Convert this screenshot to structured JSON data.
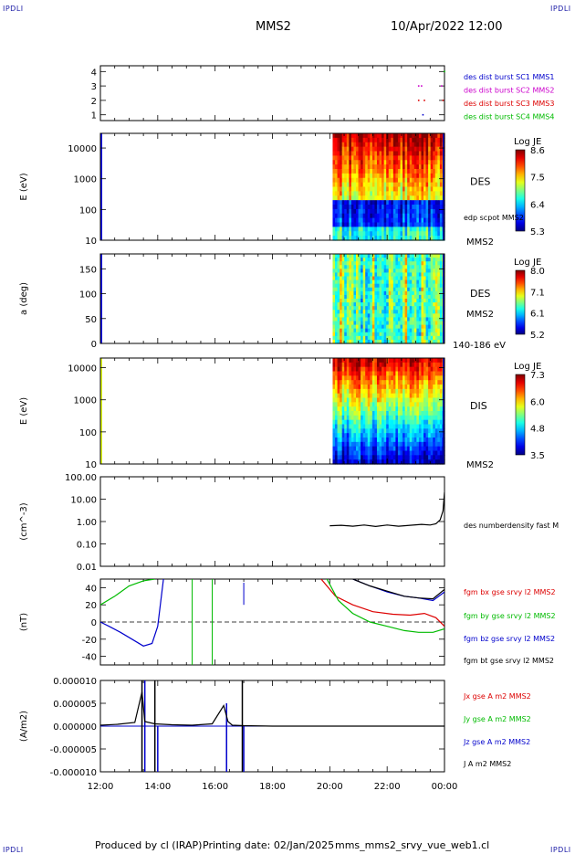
{
  "corners": {
    "tl": "IPDLI",
    "tr": "IPDLI",
    "bl": "IPDLI",
    "br": "IPDLI"
  },
  "header": {
    "title": "MMS2",
    "datetime": "10/Apr/2022 12:00"
  },
  "footer": {
    "produced": "Produced by cl (IRAP)",
    "printing": "Printing date: 02/Jan/2025",
    "file": "mms_mms2_srvy_vue_web1.cl"
  },
  "colors": {
    "blue": "#0000cc",
    "magenta": "#cc00cc",
    "red": "#dd0000",
    "green": "#00bb00",
    "black": "#000000"
  },
  "chart_data": [
    {
      "type": "scatter",
      "yticks": [
        "4",
        "3",
        "2",
        "1"
      ],
      "ylim": [
        0.6,
        4.4
      ],
      "legend": [
        {
          "text": "des dist burst SC1 MMS1",
          "color": "#0000cc"
        },
        {
          "text": "des dist burst SC2 MMS2",
          "color": "#cc00cc"
        },
        {
          "text": "des dist burst SC3 MMS3",
          "color": "#dd0000"
        },
        {
          "text": "des dist burst SC4 MMS4",
          "color": "#00bb00"
        }
      ],
      "series": [
        {
          "color": "#cc00cc",
          "x": [
            23.1,
            23.2,
            23.9
          ],
          "y": [
            3,
            3,
            3
          ]
        },
        {
          "color": "#dd0000",
          "x": [
            23.1,
            23.3,
            23.95
          ],
          "y": [
            2,
            2,
            2
          ]
        },
        {
          "color": "#0000cc",
          "x": [
            23.25
          ],
          "y": [
            1
          ]
        },
        {
          "color": "#00bb00",
          "x": [
            24.0
          ],
          "y": [
            4
          ]
        }
      ]
    },
    {
      "type": "heatmap",
      "ylabel": "E (eV)",
      "yticks": [
        "10000",
        "1000",
        "100",
        "10"
      ],
      "scale": "log",
      "ylim": [
        10,
        30000
      ],
      "label_right": "DES",
      "label_right2": "edp scpot MMS2",
      "label_right3": "MMS2",
      "colorbar": {
        "title": "Log JE",
        "ticks": [
          "8.6",
          "7.5",
          "6.4",
          "5.3"
        ]
      },
      "active_x": [
        20.1,
        24.0
      ]
    },
    {
      "type": "heatmap",
      "ylabel": "a (deg)",
      "yticks": [
        "150",
        "100",
        "50",
        "0"
      ],
      "ylim": [
        0,
        180
      ],
      "label_right": "DES",
      "label_right2": "MMS2",
      "label_right3": "140-186 eV",
      "colorbar": {
        "title": "Log JE",
        "ticks": [
          "8.0",
          "7.1",
          "6.1",
          "5.2"
        ]
      },
      "active_x": [
        20.1,
        24.0
      ]
    },
    {
      "type": "heatmap",
      "ylabel": "E (eV)",
      "yticks": [
        "10000",
        "1000",
        "100",
        "10"
      ],
      "scale": "log",
      "ylim": [
        10,
        20000
      ],
      "label_right": "DIS",
      "label_right2": "MMS2",
      "colorbar": {
        "title": "Log JE",
        "ticks": [
          "7.3",
          "6.0",
          "4.8",
          "3.5"
        ]
      },
      "active_x": [
        20.1,
        24.0
      ]
    },
    {
      "type": "line",
      "ylabel": "(cm^-3)",
      "yticks": [
        "100.00",
        "10.00",
        "1.00",
        "0.10",
        "0.01"
      ],
      "scale": "log",
      "ylim": [
        0.01,
        100
      ],
      "legend": [
        {
          "text": "des numberdensity fast M",
          "color": "#000000"
        }
      ],
      "series": [
        {
          "color": "#000000",
          "x": [
            20.0,
            20.4,
            20.8,
            21.2,
            21.6,
            22.0,
            22.4,
            22.8,
            23.2,
            23.5,
            23.7,
            23.85,
            23.95,
            24.0
          ],
          "y": [
            0.65,
            0.68,
            0.62,
            0.7,
            0.6,
            0.7,
            0.62,
            0.68,
            0.75,
            0.7,
            0.8,
            1.2,
            3.0,
            20
          ]
        }
      ]
    },
    {
      "type": "line",
      "ylabel": "(nT)",
      "yticks": [
        "40",
        "20",
        "0",
        "-20",
        "-40"
      ],
      "ylim": [
        -50,
        50
      ],
      "legend": [
        {
          "text": "fgm bx gse srvy l2 MMS2",
          "color": "#dd0000"
        },
        {
          "text": "fgm by gse srvy l2 MMS2",
          "color": "#00bb00"
        },
        {
          "text": "fgm bz gse srvy l2 MMS2",
          "color": "#0000cc"
        },
        {
          "text": "fgm bt gse srvy l2 MMS2",
          "color": "#000000"
        }
      ],
      "series": [
        {
          "color": "#00bb00",
          "x": [
            12.0,
            12.5,
            13.0,
            13.5,
            13.9
          ],
          "y": [
            20,
            30,
            42,
            48,
            50
          ]
        },
        {
          "color": "#0000cc",
          "x": [
            12.0,
            12.3,
            12.7,
            13.1,
            13.5,
            13.8,
            14.0,
            14.2
          ],
          "y": [
            0,
            -5,
            -12,
            -20,
            -28,
            -25,
            -5,
            50
          ]
        },
        {
          "color": "#dd0000",
          "x": [
            19.7,
            20.2,
            20.8,
            21.5,
            22.2,
            22.8,
            23.3,
            23.7,
            24.0
          ],
          "y": [
            50,
            30,
            20,
            12,
            9,
            8,
            10,
            5,
            -5
          ]
        },
        {
          "color": "#00bb00",
          "x": [
            19.9,
            20.3,
            20.8,
            21.4,
            22.0,
            22.6,
            23.1,
            23.6,
            24.0
          ],
          "y": [
            50,
            25,
            10,
            0,
            -5,
            -10,
            -12,
            -12,
            -8
          ]
        },
        {
          "color": "#0000cc",
          "x": [
            20.8,
            21.4,
            22.0,
            22.6,
            23.1,
            23.6,
            24.0
          ],
          "y": [
            50,
            42,
            35,
            30,
            28,
            25,
            35
          ]
        },
        {
          "color": "#000000",
          "x": [
            20.8,
            21.4,
            22.0,
            22.6,
            23.1,
            23.6,
            24.0
          ],
          "y": [
            50,
            42,
            36,
            30,
            28,
            27,
            38
          ]
        }
      ]
    },
    {
      "type": "line",
      "ylabel": "(A/m2)",
      "yticks": [
        "0.000010",
        "0.000005",
        "0.000000",
        "-0.000005",
        "-0.000010"
      ],
      "ylim": [
        -1e-05,
        1e-05
      ],
      "legend": [
        {
          "text": "Jx gse A m2 MMS2",
          "color": "#dd0000"
        },
        {
          "text": "Jy gse A m2 MMS2",
          "color": "#00bb00"
        },
        {
          "text": "Jz gse A m2 MMS2",
          "color": "#0000cc"
        },
        {
          "text": "J A m2 MMS2",
          "color": "#000000"
        }
      ],
      "series": [
        {
          "color": "#000000",
          "x": [
            12.0,
            12.6,
            13.2,
            13.45,
            13.55,
            13.9,
            14.5,
            15.2,
            15.9,
            16.3,
            16.45,
            16.6,
            17.0,
            18.0,
            24.0
          ],
          "y": [
            2e-07,
            4e-07,
            8e-07,
            7.5e-06,
            1e-06,
            5e-07,
            3e-07,
            2e-07,
            5e-07,
            4.5e-06,
            1e-06,
            2e-07,
            1e-07,
            0.0,
            0.0
          ]
        }
      ]
    }
  ],
  "time_axis": {
    "ticks": [
      "12:00",
      "14:00",
      "16:00",
      "18:00",
      "20:00",
      "22:00",
      "00:00"
    ],
    "xlim": [
      12,
      24
    ]
  }
}
